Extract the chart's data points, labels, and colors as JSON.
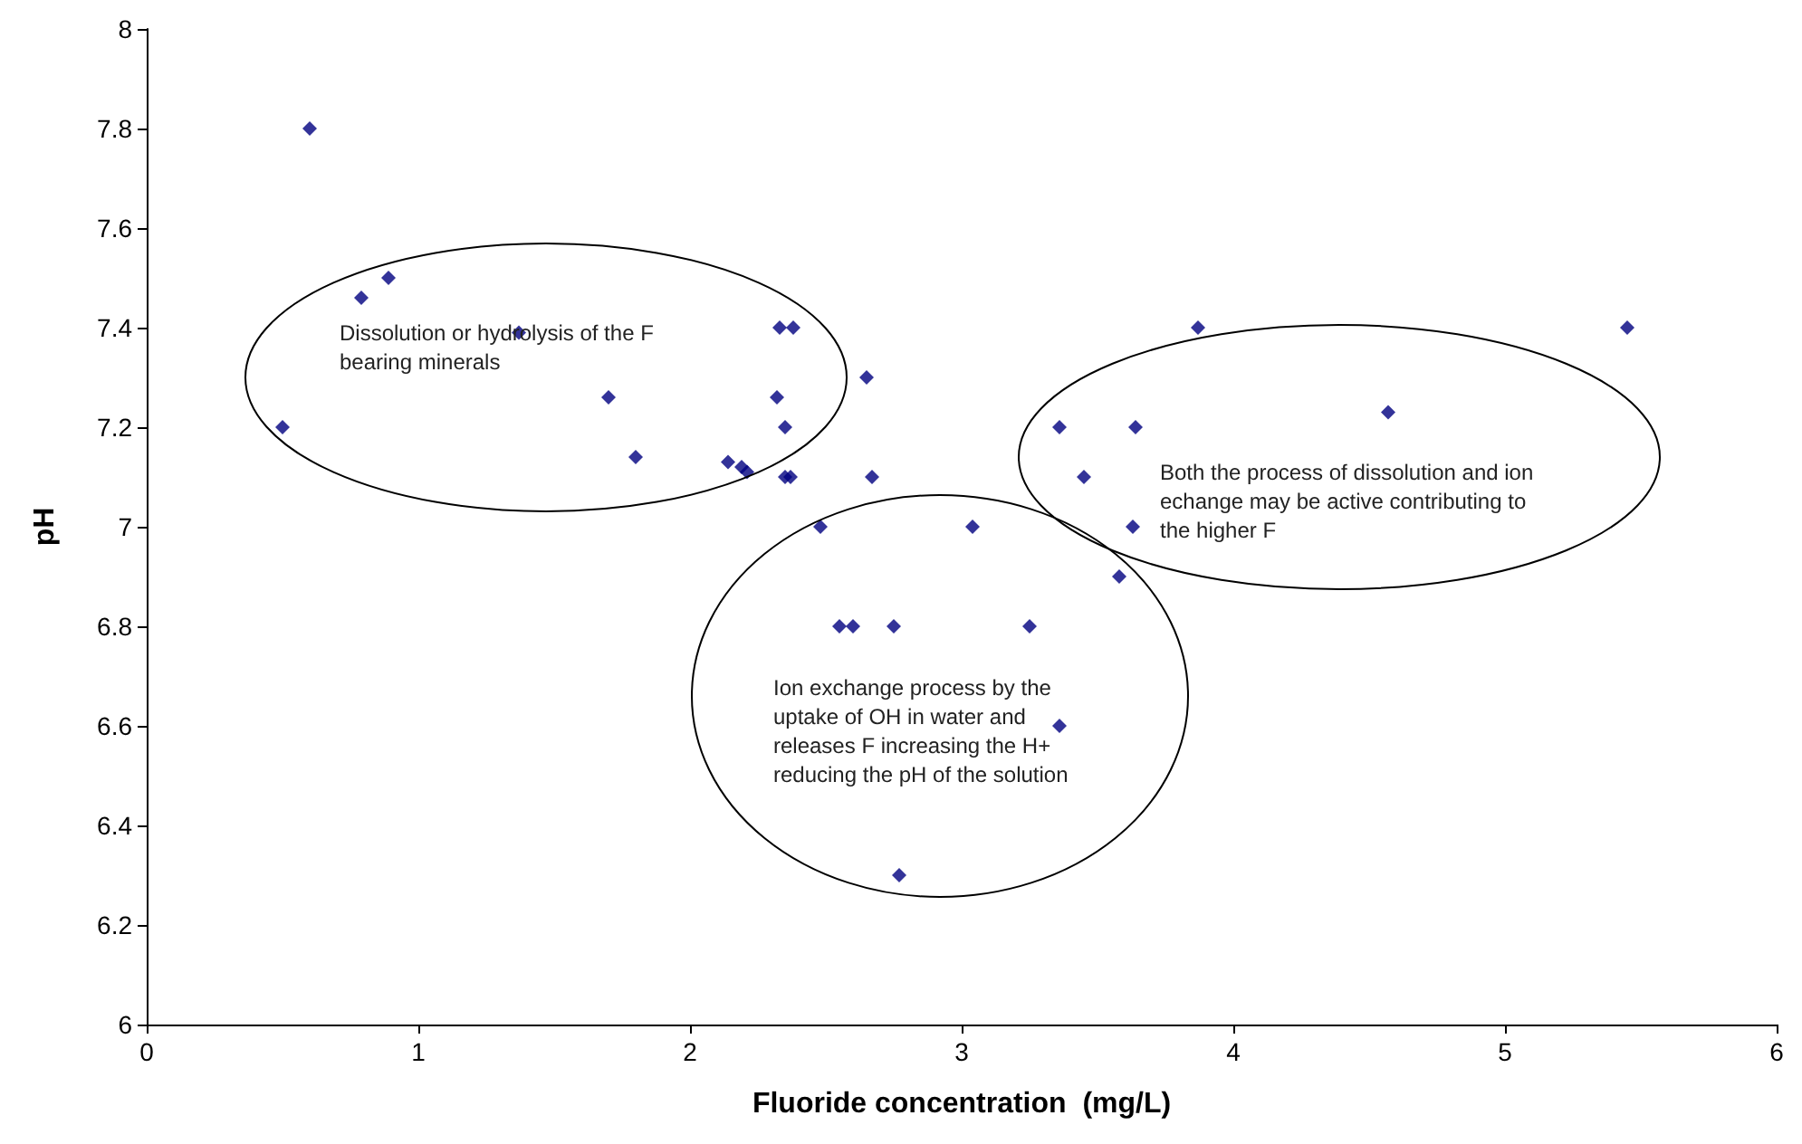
{
  "chart_data": {
    "type": "scatter",
    "xlabel": "Fluoride concentration  (mg/L)",
    "ylabel": "pH",
    "series": [
      {
        "color": "#000080",
        "x": [
          0.6,
          0.79,
          0.89,
          0.5,
          1.37,
          1.7,
          1.8,
          2.14,
          2.19,
          2.21,
          2.33,
          2.38,
          2.32,
          2.35,
          2.35,
          2.37,
          2.65,
          2.67,
          2.48,
          3.04,
          2.55,
          2.6,
          2.75,
          3.25,
          3.36,
          2.77,
          3.58,
          3.63,
          3.36,
          3.64,
          3.45,
          3.87,
          4.57,
          5.45
        ],
        "values": [
          7.8,
          7.46,
          7.5,
          7.2,
          7.39,
          7.26,
          7.14,
          7.13,
          7.12,
          7.11,
          7.4,
          7.4,
          7.26,
          7.2,
          7.1,
          7.1,
          7.3,
          7.1,
          7.0,
          7.0,
          6.8,
          6.8,
          6.8,
          6.8,
          6.6,
          6.3,
          6.9,
          7.0,
          7.2,
          7.2,
          7.1,
          7.4,
          7.23,
          7.4
        ]
      }
    ],
    "xlim": [
      0,
      6
    ],
    "xticks": [
      0,
      1,
      2,
      3,
      4,
      5,
      6
    ],
    "ylim": [
      6,
      8
    ],
    "yticks": [
      6,
      6.2,
      6.4,
      6.6,
      6.8,
      7,
      7.2,
      7.4,
      7.6,
      7.8,
      8
    ],
    "marker": "diamond",
    "grid": false,
    "annotations": [
      "Dissolution or hydrolysis of the F bearing minerals",
      "Ion exchange process by the uptake of OH in water and releases F increasing the H+ reducing the pH of the solution",
      "Both the process of dissolution and ion echange may be active contributing to the higher F"
    ]
  }
}
